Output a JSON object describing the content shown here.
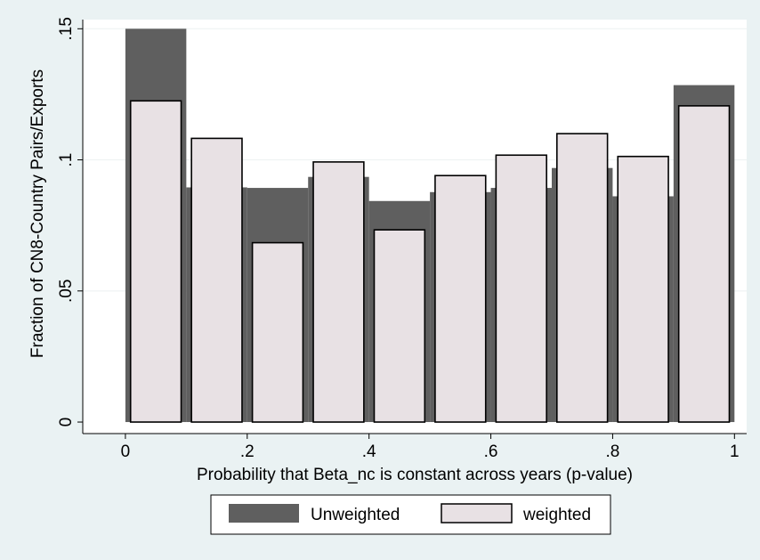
{
  "colors": {
    "background": "#eaf2f3",
    "plot_background": "#ffffff",
    "unweighted": "#5f5f5f",
    "weighted_fill": "#e8e1e4",
    "weighted_stroke": "#000000",
    "grid": "#eef2f3"
  },
  "chart_data": {
    "type": "bar",
    "title": "",
    "xlabel": "Probability that Beta_nc is constant across years (p-value)",
    "ylabel": "Fraction of CN8-Country Pairs/Exports",
    "xlim": [
      -0.07,
      1.02
    ],
    "ylim": [
      -0.0044,
      0.1535
    ],
    "x_ticks": [
      0,
      0.2,
      0.4,
      0.6,
      0.8,
      1
    ],
    "x_tick_labels": [
      "0",
      ".2",
      ".4",
      ".6",
      ".8",
      "1"
    ],
    "y_ticks": [
      0,
      0.05,
      0.1,
      0.15
    ],
    "y_tick_labels": [
      "0",
      ".05",
      ".1",
      ".15"
    ],
    "grid": true,
    "legend_position": "bottom",
    "bin_edges": [
      0,
      0.1,
      0.2,
      0.3,
      0.4,
      0.5,
      0.6,
      0.7,
      0.8,
      0.9,
      1.0
    ],
    "series": [
      {
        "name": "Unweighted",
        "style": "wide-dark",
        "values": [
          0.15,
          0.0895,
          0.0893,
          0.0935,
          0.0843,
          0.0877,
          0.0893,
          0.0969,
          0.0861,
          0.1285
        ]
      },
      {
        "name": "weighted",
        "style": "narrow-light",
        "values": [
          0.1225,
          0.1082,
          0.0684,
          0.0992,
          0.0733,
          0.094,
          0.1018,
          0.11,
          0.1013,
          0.1206
        ]
      }
    ]
  }
}
